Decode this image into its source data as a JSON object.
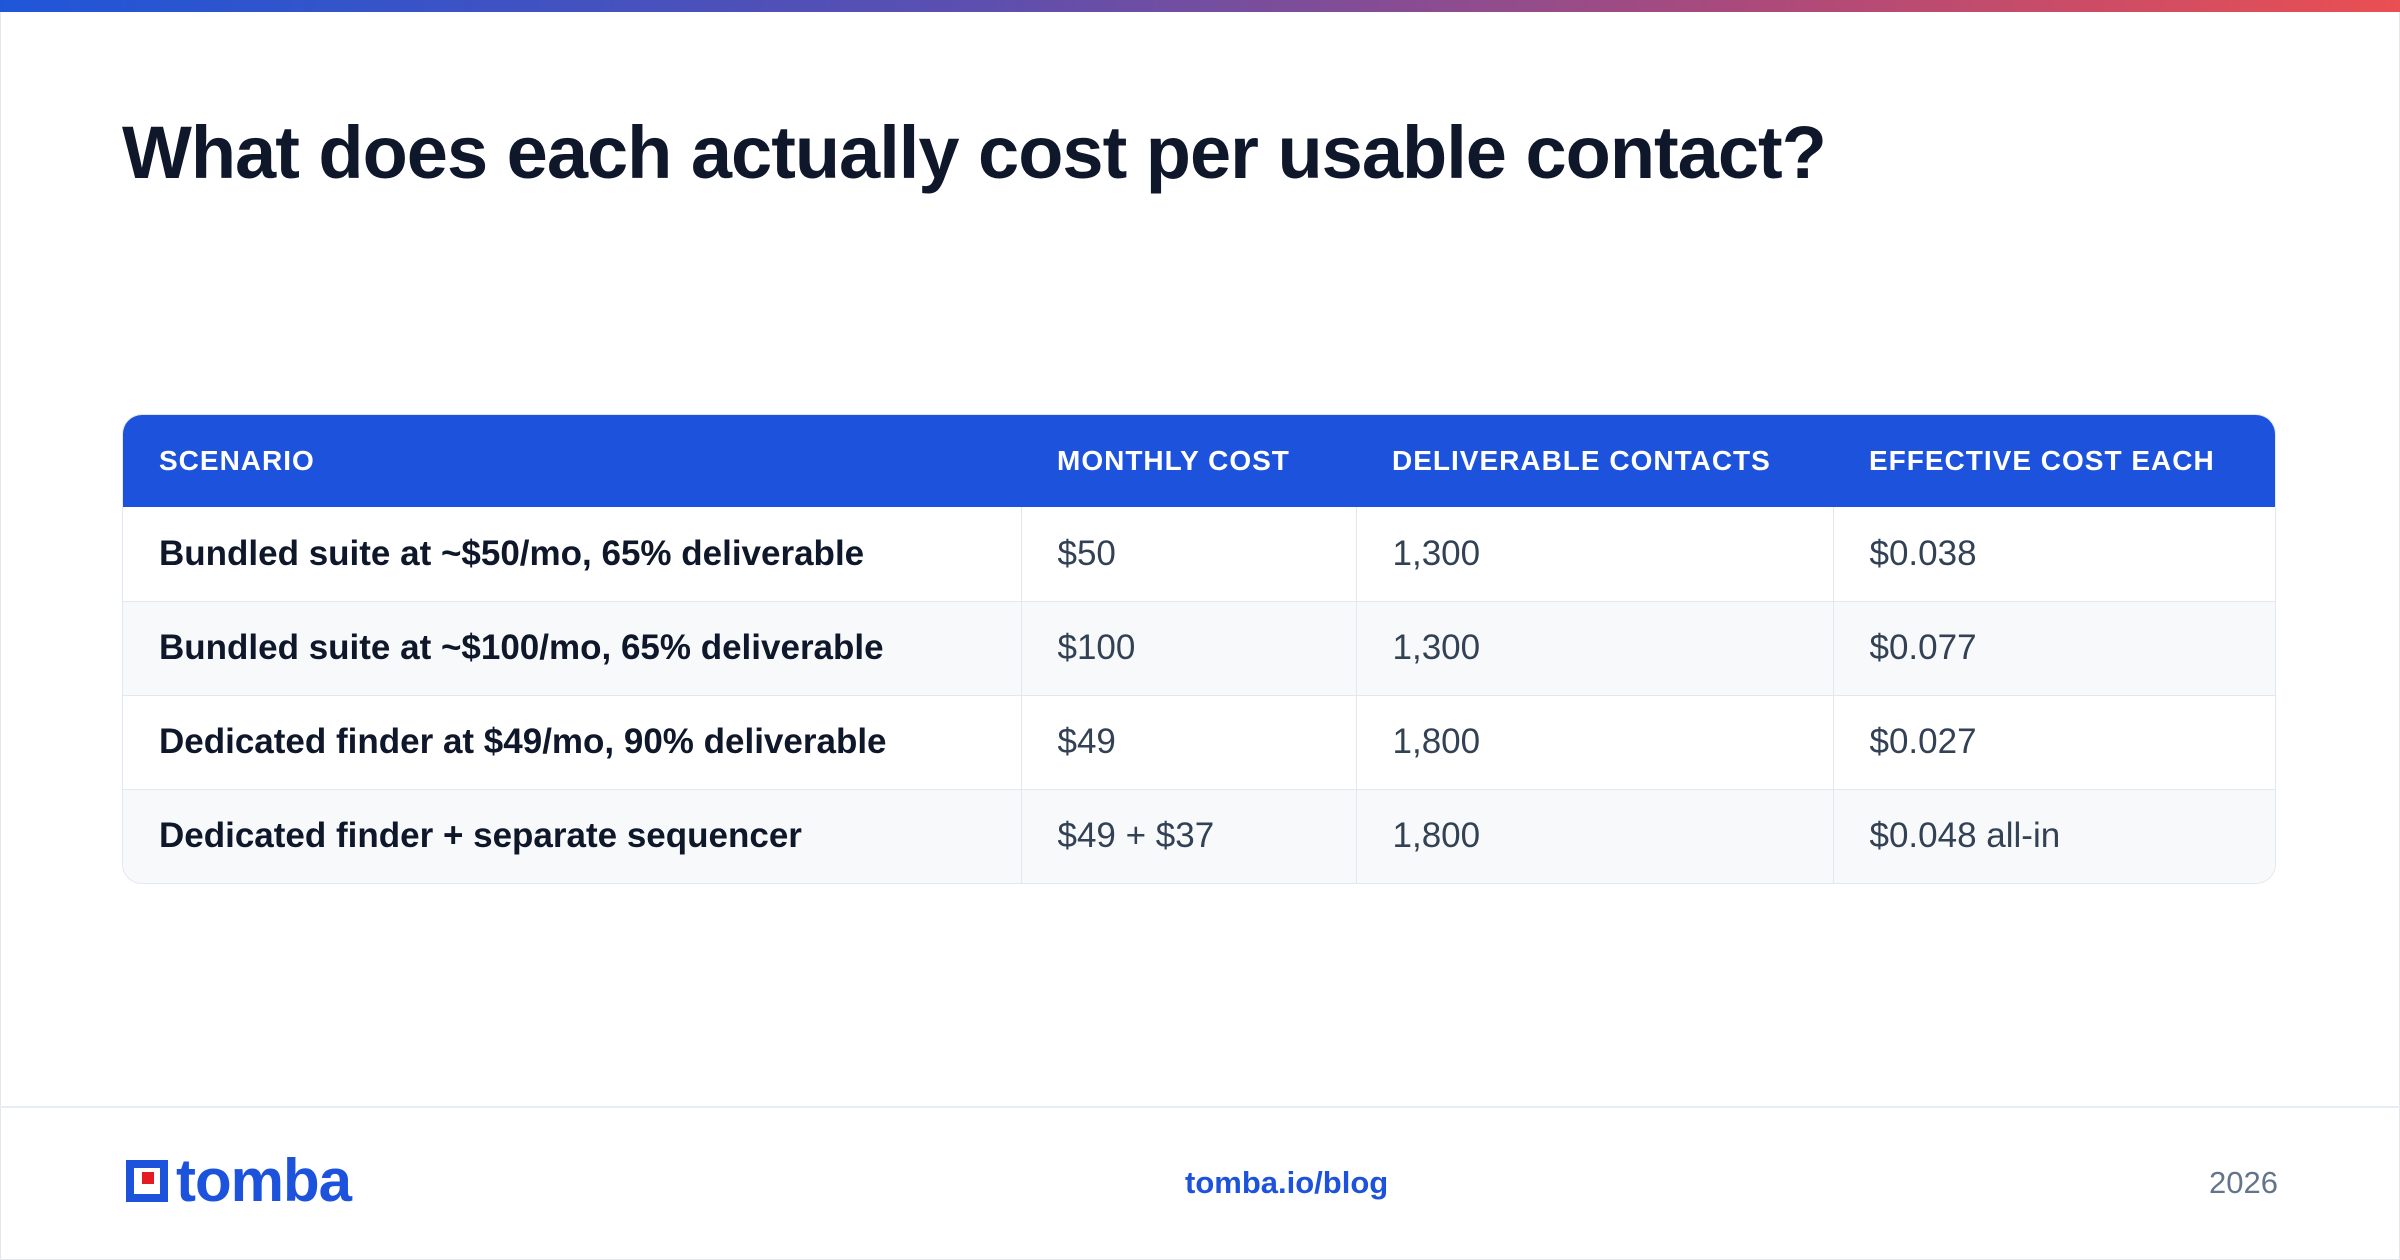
{
  "title": "What does each actually cost per usable contact?",
  "colors": {
    "accent": "#1c52dc",
    "gradient_start": "#1f56d8",
    "gradient_end": "#ea4f52",
    "logo_square": "#e31b23"
  },
  "table": {
    "headers": [
      "SCENARIO",
      "MONTHLY COST",
      "DELIVERABLE CONTACTS",
      "EFFECTIVE COST EACH"
    ],
    "rows": [
      {
        "scenario": "Bundled suite at ~$50/mo, 65% deliverable",
        "monthly_cost": "$50",
        "deliverable": "1,300",
        "effective": "$0.038"
      },
      {
        "scenario": "Bundled suite at ~$100/mo, 65% deliverable",
        "monthly_cost": "$100",
        "deliverable": "1,300",
        "effective": "$0.077"
      },
      {
        "scenario": "Dedicated finder at $49/mo, 90% deliverable",
        "monthly_cost": "$49",
        "deliverable": "1,800",
        "effective": "$0.027"
      },
      {
        "scenario": "Dedicated finder + separate sequencer",
        "monthly_cost": "$49 + $37",
        "deliverable": "1,800",
        "effective": "$0.048 all-in"
      }
    ]
  },
  "footer": {
    "logo_text": "tomba",
    "logo_icon": "tomba-logo-icon",
    "link": "tomba.io/blog",
    "year": "2026"
  }
}
